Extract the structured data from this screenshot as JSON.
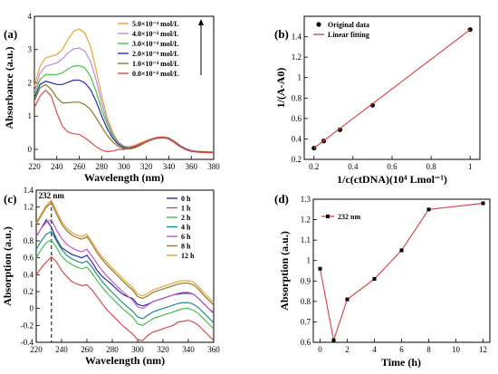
{
  "chart_data": [
    {
      "panel": "(a)",
      "type": "line",
      "xlabel": "Wavelength (nm)",
      "ylabel": "Absorbance (a.u.)",
      "xlim": [
        220,
        380
      ],
      "ylim": [
        -0.3,
        4
      ],
      "xticks": [
        220,
        240,
        260,
        280,
        300,
        320,
        340,
        360,
        380
      ],
      "yticks": [
        0,
        1,
        2,
        3,
        4
      ],
      "legend_position": "top-right",
      "x": [
        220,
        225,
        230,
        235,
        240,
        245,
        250,
        255,
        260,
        265,
        270,
        275,
        280,
        285,
        290,
        295,
        300,
        305,
        310,
        315,
        320,
        325,
        330,
        335,
        340,
        345,
        350,
        355,
        360,
        365,
        370,
        375,
        380
      ],
      "series": [
        {
          "name": "5.0×10⁻⁴ mol/L",
          "color": "#e8a33a",
          "values": [
            1.9,
            2.5,
            2.75,
            2.8,
            2.85,
            3.0,
            3.3,
            3.55,
            3.62,
            3.5,
            3.1,
            2.4,
            1.6,
            0.95,
            0.5,
            0.22,
            0.1,
            0.08,
            0.13,
            0.2,
            0.27,
            0.33,
            0.37,
            0.38,
            0.35,
            0.25,
            0.12,
            0.03,
            -0.03,
            -0.05,
            -0.06,
            -0.07,
            -0.08
          ]
        },
        {
          "name": "4.0×10⁻⁴ mol/L",
          "color": "#c088d8",
          "values": [
            1.75,
            2.3,
            2.5,
            2.55,
            2.6,
            2.72,
            2.9,
            3.02,
            3.05,
            2.95,
            2.65,
            2.1,
            1.4,
            0.85,
            0.45,
            0.2,
            0.08,
            0.06,
            0.1,
            0.18,
            0.25,
            0.32,
            0.36,
            0.37,
            0.34,
            0.24,
            0.11,
            0.02,
            -0.04,
            -0.06,
            -0.07,
            -0.08,
            -0.08
          ]
        },
        {
          "name": "3.0×10⁻⁴ mol/L",
          "color": "#44c044",
          "values": [
            1.65,
            2.1,
            2.25,
            2.25,
            2.25,
            2.3,
            2.42,
            2.5,
            2.52,
            2.45,
            2.2,
            1.75,
            1.2,
            0.75,
            0.4,
            0.18,
            0.06,
            0.04,
            0.08,
            0.16,
            0.24,
            0.31,
            0.35,
            0.36,
            0.33,
            0.23,
            0.1,
            0.01,
            -0.05,
            -0.07,
            -0.08,
            -0.08,
            -0.09
          ]
        },
        {
          "name": "2.0×10⁻⁴ mol/L",
          "color": "#2a2aa8",
          "values": [
            1.55,
            1.95,
            2.05,
            2.0,
            1.95,
            1.95,
            2.02,
            2.08,
            2.08,
            2.0,
            1.8,
            1.45,
            1.0,
            0.62,
            0.33,
            0.15,
            0.05,
            0.03,
            0.07,
            0.15,
            0.23,
            0.3,
            0.35,
            0.36,
            0.33,
            0.22,
            0.1,
            0.01,
            -0.05,
            -0.07,
            -0.08,
            -0.09,
            -0.09
          ]
        },
        {
          "name": "1.0×10⁻⁴ mol/L",
          "color": "#8c7a2a",
          "values": [
            1.45,
            1.85,
            1.95,
            1.8,
            1.55,
            1.4,
            1.4,
            1.42,
            1.42,
            1.35,
            1.2,
            0.95,
            0.68,
            0.42,
            0.22,
            0.09,
            0.02,
            0.01,
            0.05,
            0.13,
            0.22,
            0.29,
            0.34,
            0.35,
            0.32,
            0.22,
            0.09,
            0.0,
            -0.06,
            -0.08,
            -0.09,
            -0.09,
            -0.1
          ]
        },
        {
          "name": "0.0×10⁻⁴ mol/L",
          "color": "#d94a4a",
          "values": [
            1.25,
            1.6,
            1.78,
            1.6,
            1.1,
            0.7,
            0.52,
            0.47,
            0.45,
            0.35,
            0.22,
            0.08,
            -0.02,
            -0.07,
            -0.05,
            0.0,
            0.0,
            0.05,
            0.1,
            0.17,
            0.24,
            0.3,
            0.34,
            0.35,
            0.31,
            0.2,
            0.08,
            -0.01,
            -0.06,
            -0.08,
            -0.09,
            -0.1,
            -0.1
          ]
        }
      ]
    },
    {
      "panel": "(b)",
      "type": "scatter",
      "xlabel": "1/c(ctDNA)(10⁴ Lmol⁻¹)",
      "ylabel": "1/(A-A0)",
      "xlim": [
        0.15,
        1.05
      ],
      "ylim": [
        0.2,
        1.6
      ],
      "xticks": [
        0.2,
        0.4,
        0.6,
        0.8,
        1.0
      ],
      "yticks": [
        0.2,
        0.4,
        0.6,
        0.8,
        1.0,
        1.2,
        1.4
      ],
      "legend_position": "top-left",
      "series": [
        {
          "name": "Original data",
          "color": "#000000",
          "x": [
            0.2,
            0.25,
            0.333,
            0.5,
            1.0
          ],
          "values": [
            0.31,
            0.38,
            0.49,
            0.73,
            1.47
          ]
        },
        {
          "name": "Linear fitting",
          "color": "#d94a4a",
          "x": [
            0.2,
            1.0
          ],
          "values": [
            0.31,
            1.47
          ]
        }
      ]
    },
    {
      "panel": "(c)",
      "type": "line",
      "xlabel": "Wavelength (nm)",
      "ylabel": "Absorption (a.u.)",
      "xlim": [
        220,
        360
      ],
      "ylim": [
        -0.4,
        1.4
      ],
      "xticks": [
        220,
        240,
        260,
        280,
        300,
        320,
        340,
        360
      ],
      "yticks": [
        -0.4,
        -0.2,
        0.0,
        0.2,
        0.4,
        0.6,
        0.8,
        1.0,
        1.2,
        1.4
      ],
      "annotation": "232 nm",
      "annotation_x": 232,
      "legend_position": "top-right",
      "x": [
        220,
        224,
        228,
        232,
        236,
        240,
        244,
        248,
        252,
        256,
        260,
        264,
        268,
        272,
        276,
        280,
        284,
        288,
        292,
        296,
        300,
        304,
        308,
        312,
        316,
        320,
        324,
        328,
        332,
        336,
        340,
        344,
        348,
        352,
        356,
        360
      ],
      "series": [
        {
          "name": "0 h",
          "color": "#2a2aa8",
          "values": [
            0.85,
            0.95,
            1.05,
            0.96,
            0.82,
            0.72,
            0.68,
            0.64,
            0.62,
            0.6,
            0.63,
            0.55,
            0.45,
            0.38,
            0.33,
            0.28,
            0.22,
            0.17,
            0.14,
            0.12,
            0.05,
            0.03,
            0.05,
            0.08,
            0.1,
            0.12,
            0.14,
            0.16,
            0.17,
            0.18,
            0.18,
            0.17,
            0.12,
            0.06,
            0.0,
            -0.05
          ]
        },
        {
          "name": "1 h",
          "color": "#d94a4a",
          "values": [
            0.4,
            0.48,
            0.55,
            0.61,
            0.55,
            0.45,
            0.38,
            0.32,
            0.29,
            0.27,
            0.28,
            0.22,
            0.14,
            0.06,
            -0.02,
            -0.08,
            -0.14,
            -0.2,
            -0.25,
            -0.3,
            -0.37,
            -0.38,
            -0.32,
            -0.28,
            -0.26,
            -0.24,
            -0.22,
            -0.2,
            -0.16,
            -0.15,
            -0.14,
            -0.16,
            -0.2,
            -0.26,
            -0.32,
            -0.38
          ]
        },
        {
          "name": "2 h",
          "color": "#44c044",
          "values": [
            0.6,
            0.7,
            0.78,
            0.81,
            0.72,
            0.62,
            0.56,
            0.52,
            0.49,
            0.47,
            0.49,
            0.42,
            0.33,
            0.25,
            0.18,
            0.12,
            0.06,
            0.0,
            -0.05,
            -0.1,
            -0.18,
            -0.2,
            -0.16,
            -0.12,
            -0.1,
            -0.08,
            -0.06,
            -0.04,
            -0.02,
            0.0,
            0.0,
            -0.02,
            -0.06,
            -0.12,
            -0.18,
            -0.24
          ]
        },
        {
          "name": "4 h",
          "color": "#1f8c8c",
          "values": [
            0.7,
            0.8,
            0.88,
            0.91,
            0.8,
            0.7,
            0.63,
            0.59,
            0.56,
            0.54,
            0.56,
            0.49,
            0.4,
            0.32,
            0.25,
            0.19,
            0.13,
            0.07,
            0.02,
            -0.03,
            -0.1,
            -0.12,
            -0.08,
            -0.04,
            -0.02,
            0.0,
            0.02,
            0.04,
            0.06,
            0.07,
            0.07,
            0.05,
            0.01,
            -0.05,
            -0.11,
            -0.17
          ]
        },
        {
          "name": "6 h",
          "color": "#c057c8",
          "values": [
            0.85,
            0.95,
            1.02,
            1.05,
            0.93,
            0.83,
            0.76,
            0.72,
            0.69,
            0.67,
            0.7,
            0.62,
            0.53,
            0.45,
            0.38,
            0.32,
            0.26,
            0.2,
            0.15,
            0.1,
            0.02,
            0.0,
            0.04,
            0.08,
            0.1,
            0.12,
            0.14,
            0.16,
            0.18,
            0.19,
            0.19,
            0.17,
            0.12,
            0.06,
            0.0,
            -0.06
          ]
        },
        {
          "name": "8 h",
          "color": "#8c7a2a",
          "values": [
            1.0,
            1.1,
            1.2,
            1.25,
            1.12,
            1.0,
            0.92,
            0.87,
            0.84,
            0.82,
            0.85,
            0.76,
            0.66,
            0.58,
            0.51,
            0.45,
            0.39,
            0.33,
            0.27,
            0.22,
            0.14,
            0.12,
            0.15,
            0.19,
            0.21,
            0.23,
            0.25,
            0.27,
            0.29,
            0.3,
            0.3,
            0.28,
            0.23,
            0.16,
            0.1,
            0.04
          ]
        },
        {
          "name": "12 h",
          "color": "#e8a33a",
          "values": [
            1.02,
            1.12,
            1.22,
            1.28,
            1.15,
            1.03,
            0.95,
            0.9,
            0.87,
            0.85,
            0.88,
            0.79,
            0.69,
            0.61,
            0.54,
            0.48,
            0.42,
            0.36,
            0.3,
            0.25,
            0.17,
            0.15,
            0.18,
            0.22,
            0.24,
            0.26,
            0.28,
            0.3,
            0.32,
            0.33,
            0.33,
            0.31,
            0.26,
            0.19,
            0.13,
            0.07
          ]
        }
      ]
    },
    {
      "panel": "(d)",
      "type": "line",
      "xlabel": "Time (h)",
      "ylabel": "Absorption (a.u.)",
      "xlim": [
        -0.5,
        12.5
      ],
      "ylim": [
        0.6,
        1.3
      ],
      "xticks": [
        0,
        2,
        4,
        6,
        8,
        10,
        12
      ],
      "yticks": [
        0.6,
        0.7,
        0.8,
        0.9,
        1.0,
        1.1,
        1.2,
        1.3
      ],
      "legend_position": "top-left",
      "series": [
        {
          "name": "232 nm",
          "color": "#d94a4a",
          "x": [
            0,
            1,
            2,
            4,
            6,
            8,
            12
          ],
          "values": [
            0.96,
            0.61,
            0.81,
            0.91,
            1.05,
            1.25,
            1.28
          ]
        }
      ]
    }
  ]
}
